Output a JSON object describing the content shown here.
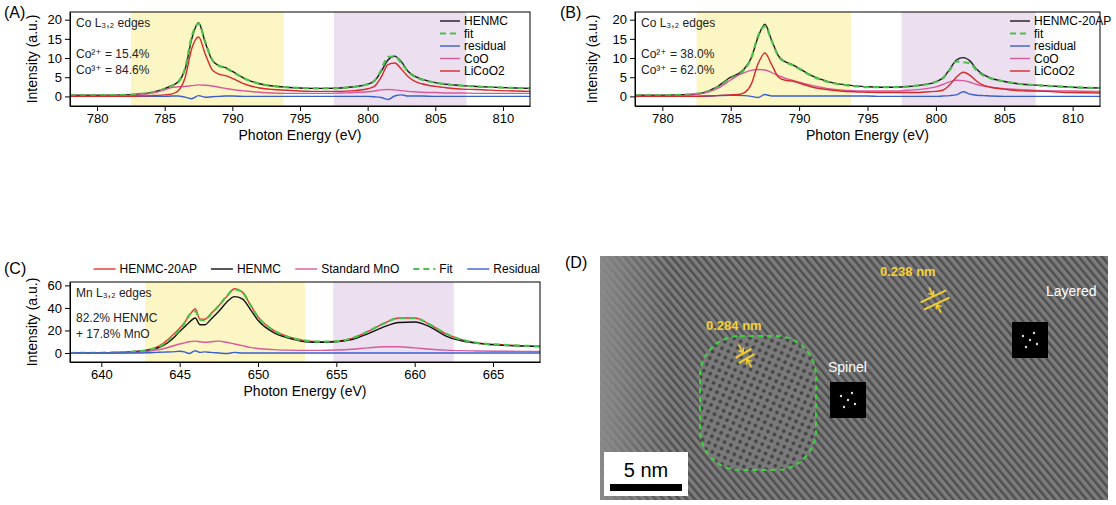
{
  "chart_data": [
    {
      "type": "line",
      "panel_label": "(A)",
      "x_label": "Photon Energy (eV)",
      "y_label": "Intensity (a.u.)",
      "annotations": [
        "Co L₃,₂ edges",
        "Co²⁺ = 15.4%",
        "Co³⁺ = 84.6%"
      ],
      "xlim": [
        778,
        812
      ],
      "xticks": [
        780,
        785,
        790,
        795,
        800,
        805,
        810
      ],
      "ylim": [
        -2.5,
        22
      ],
      "yticks": [
        0,
        5,
        10,
        15,
        20
      ],
      "bands": [
        {
          "x": [
            782.5,
            793.8
          ],
          "color": "#fcf6c4"
        },
        {
          "x": [
            797.5,
            807.3
          ],
          "color": "#ecdff0"
        }
      ],
      "legend": "upper right",
      "x": [
        778,
        780,
        782,
        783,
        784,
        785,
        785.5,
        786,
        786.5,
        787,
        787.5,
        788,
        788.5,
        789,
        789.5,
        790,
        791,
        792,
        793,
        794,
        795,
        796,
        797,
        798,
        799,
        800,
        800.5,
        801,
        801.5,
        802,
        802.5,
        803,
        803.5,
        804,
        805,
        806,
        807,
        808,
        810,
        812
      ],
      "series": [
        {
          "name": "HENMC",
          "color": "#1a1a1a",
          "values": [
            0.3,
            0.3,
            0.4,
            0.6,
            1.0,
            2.0,
            2.8,
            3.8,
            7.0,
            15.0,
            19.2,
            14.0,
            9.5,
            8.0,
            7.5,
            6.5,
            4.5,
            3.3,
            2.7,
            2.4,
            2.2,
            2.1,
            2.1,
            2.2,
            2.5,
            3.2,
            4.0,
            6.5,
            9.5,
            10.5,
            9.0,
            6.5,
            5.2,
            4.5,
            3.6,
            3.1,
            2.8,
            2.6,
            2.3,
            2.1
          ]
        },
        {
          "name": "fit",
          "color": "#4cc04c",
          "line_style": "dashed",
          "values": [
            0.3,
            0.3,
            0.4,
            0.6,
            1.0,
            2.0,
            2.7,
            3.7,
            7.2,
            15.6,
            19.0,
            14.2,
            9.6,
            8.0,
            7.4,
            6.4,
            4.5,
            3.3,
            2.7,
            2.4,
            2.2,
            2.1,
            2.1,
            2.2,
            2.5,
            3.2,
            4.1,
            6.8,
            10.3,
            10.4,
            8.6,
            6.4,
            5.1,
            4.4,
            3.6,
            3.1,
            2.8,
            2.6,
            2.3,
            2.1
          ]
        },
        {
          "name": "residual",
          "color": "#3a5fcd",
          "values": [
            0.0,
            0.0,
            0.0,
            0.0,
            0.0,
            0.0,
            0.1,
            0.1,
            -0.2,
            -0.6,
            0.2,
            -0.2,
            -0.1,
            0.0,
            0.1,
            0.1,
            0.0,
            0.0,
            0.0,
            0.0,
            0.0,
            0.0,
            0.0,
            0.0,
            0.0,
            0.0,
            -0.1,
            -0.3,
            -0.8,
            0.1,
            0.4,
            0.1,
            0.1,
            0.1,
            0.0,
            0.0,
            0.0,
            0.0,
            0.0,
            0.0
          ]
        },
        {
          "name": "CoO",
          "color": "#d65a9c",
          "values": [
            0.0,
            0.0,
            0.1,
            0.3,
            0.8,
            1.7,
            2.3,
            2.5,
            2.6,
            2.8,
            3.0,
            2.9,
            2.7,
            2.4,
            2.1,
            1.8,
            1.4,
            1.1,
            0.9,
            0.8,
            0.8,
            0.8,
            0.8,
            0.9,
            1.0,
            1.2,
            1.4,
            1.7,
            1.8,
            1.7,
            1.5,
            1.3,
            1.2,
            1.1,
            1.0,
            0.9,
            0.9,
            0.8,
            0.8,
            0.8
          ]
        },
        {
          "name": "LiCoO2",
          "color": "#d42a2a",
          "values": [
            0.0,
            0.0,
            0.0,
            0.1,
            0.2,
            0.4,
            0.6,
            1.5,
            4.8,
            12.5,
            15.5,
            11.0,
            7.0,
            5.8,
            5.4,
            4.7,
            3.1,
            2.2,
            1.8,
            1.6,
            1.4,
            1.3,
            1.3,
            1.3,
            1.5,
            2.0,
            2.6,
            5.0,
            8.3,
            8.7,
            7.1,
            5.1,
            3.9,
            3.3,
            2.6,
            2.2,
            1.9,
            1.8,
            1.5,
            1.3
          ]
        }
      ]
    },
    {
      "type": "line",
      "panel_label": "(B)",
      "x_label": "Photon Energy (eV)",
      "y_label": "Intensity (a.u.)",
      "annotations": [
        "Co L₃,₂ edges",
        "Co²⁺ = 38.0%",
        "Co³⁺ = 62.0%"
      ],
      "xlim": [
        778,
        812
      ],
      "xticks": [
        780,
        785,
        790,
        795,
        800,
        805,
        810
      ],
      "ylim": [
        -2.5,
        22
      ],
      "yticks": [
        0,
        5,
        10,
        15,
        20
      ],
      "bands": [
        {
          "x": [
            782.5,
            793.8
          ],
          "color": "#fcf6c4"
        },
        {
          "x": [
            797.5,
            807.3
          ],
          "color": "#ecdff0"
        }
      ],
      "legend": "upper right",
      "x": [
        778,
        780,
        782,
        783,
        784,
        785,
        785.5,
        786,
        786.5,
        787,
        787.5,
        788,
        788.5,
        789,
        789.5,
        790,
        791,
        792,
        793,
        794,
        795,
        796,
        797,
        798,
        799,
        800,
        800.5,
        801,
        801.5,
        802,
        802.5,
        803,
        803.5,
        804,
        805,
        806,
        807,
        808,
        810,
        812
      ],
      "series": [
        {
          "name": "HENMC-20AP",
          "color": "#1a1a1a",
          "values": [
            0.3,
            0.3,
            0.5,
            1.0,
            2.5,
            5.0,
            5.8,
            7.2,
            10.0,
            15.5,
            18.8,
            14.5,
            10.5,
            9.0,
            8.3,
            7.3,
            5.3,
            4.0,
            3.2,
            2.8,
            2.5,
            2.4,
            2.4,
            2.6,
            3.0,
            3.8,
            4.8,
            7.0,
            9.5,
            10.1,
            9.2,
            7.0,
            5.6,
            4.8,
            3.9,
            3.3,
            3.0,
            2.8,
            2.4,
            2.2
          ]
        },
        {
          "name": "fit",
          "color": "#4cc04c",
          "line_style": "dashed",
          "values": [
            0.3,
            0.3,
            0.5,
            1.0,
            2.3,
            4.7,
            5.5,
            7.0,
            10.0,
            15.8,
            18.3,
            14.4,
            10.4,
            8.9,
            8.2,
            7.2,
            5.2,
            3.9,
            3.1,
            2.7,
            2.4,
            2.4,
            2.4,
            2.6,
            3.0,
            3.8,
            4.7,
            6.8,
            9.1,
            8.9,
            8.6,
            6.7,
            5.4,
            4.7,
            3.9,
            3.3,
            3.0,
            2.8,
            2.4,
            2.2
          ]
        },
        {
          "name": "residual",
          "color": "#3a5fcd",
          "values": [
            0,
            0,
            0,
            0,
            0.2,
            0.3,
            0.3,
            0.2,
            0,
            -0.3,
            0.5,
            0.1,
            0.1,
            0.1,
            0.1,
            0.1,
            0.1,
            0.1,
            0.1,
            0.1,
            0.1,
            0,
            0,
            0,
            0,
            0,
            0.1,
            0.2,
            0.4,
            1.2,
            0.6,
            0.3,
            0.2,
            0.1,
            0,
            0,
            0,
            0,
            0,
            0
          ]
        },
        {
          "name": "CoO",
          "color": "#d65a9c",
          "values": [
            0.0,
            0.0,
            0.3,
            0.8,
            2.0,
            4.3,
            5.4,
            6.2,
            6.8,
            7.0,
            6.9,
            6.2,
            5.4,
            4.7,
            4.2,
            3.7,
            2.8,
            2.1,
            1.7,
            1.5,
            1.4,
            1.4,
            1.4,
            1.6,
            1.9,
            2.5,
            3.1,
            3.8,
            4.2,
            4.1,
            3.7,
            3.1,
            2.7,
            2.4,
            2.0,
            1.8,
            1.6,
            1.5,
            1.4,
            1.3
          ]
        },
        {
          "name": "LiCoO2",
          "color": "#d42a2a",
          "values": [
            0.0,
            0.0,
            0.0,
            0.1,
            0.2,
            0.4,
            0.5,
            1.0,
            3.2,
            8.5,
            11.3,
            8.2,
            5.0,
            4.2,
            4.0,
            3.5,
            2.4,
            1.8,
            1.4,
            1.2,
            1.1,
            1.0,
            1.0,
            1.0,
            1.1,
            1.3,
            1.6,
            3.0,
            5.0,
            6.3,
            5.5,
            3.9,
            2.9,
            2.4,
            1.9,
            1.5,
            1.4,
            1.3,
            1.0,
            0.9
          ]
        }
      ]
    },
    {
      "type": "line",
      "panel_label": "(C)",
      "x_label": "Photon Energy (eV)",
      "y_label": "Intensity (a.u.)",
      "annotations": [
        "Mn L₃,₂ edges",
        "82.2% HENMC",
        "+ 17.8% MnO"
      ],
      "xlim": [
        638,
        668
      ],
      "xticks": [
        640,
        645,
        650,
        655,
        660,
        665
      ],
      "ylim": [
        -8,
        63
      ],
      "yticks": [
        0,
        20,
        40,
        60
      ],
      "bands": [
        {
          "x": [
            642.8,
            653
          ],
          "color": "#fcf6c4"
        },
        {
          "x": [
            654.8,
            662.5
          ],
          "color": "#ecdff0"
        }
      ],
      "legend": "top",
      "x": [
        638,
        640,
        641,
        642,
        643,
        643.5,
        644,
        644.5,
        645,
        645.3,
        645.6,
        646,
        646.3,
        646.6,
        647,
        647.5,
        648,
        648.5,
        649,
        649.5,
        650,
        651,
        652,
        653,
        654,
        655,
        656,
        657,
        658,
        659,
        660,
        661,
        662,
        664,
        666,
        668
      ],
      "series": [
        {
          "name": "HENMC-20AP",
          "color": "#e8332a",
          "values": [
            0,
            0.2,
            0.5,
            1.2,
            3,
            5,
            9,
            15,
            22,
            27,
            33,
            39,
            30,
            30,
            35,
            42,
            50,
            57,
            54,
            43,
            32,
            20,
            14,
            11,
            10,
            10.5,
            13,
            19,
            26,
            31,
            31,
            25,
            17,
            9,
            7,
            6
          ]
        },
        {
          "name": "HENMC",
          "color": "#111111",
          "values": [
            0,
            0.2,
            0.4,
            1,
            2.5,
            4,
            7,
            12,
            19,
            23,
            27,
            31,
            25,
            25,
            30,
            37,
            45,
            50,
            48,
            39,
            29,
            18,
            13,
            10,
            9.5,
            10,
            12,
            17,
            23,
            27,
            27.5,
            23,
            15,
            8.5,
            6.5,
            5.8
          ]
        },
        {
          "name": "Standard MnO",
          "color": "#d65a9c",
          "values": [
            0,
            0,
            0.2,
            0.5,
            1.5,
            2.5,
            4,
            6,
            8,
            9,
            10,
            10.5,
            10,
            9.5,
            10,
            10.5,
            9.5,
            8,
            6.5,
            5,
            4,
            3,
            2.5,
            2.3,
            2.3,
            2.6,
            3.3,
            4.5,
            5.5,
            5.5,
            4.5,
            3.3,
            2.5,
            1.8,
            1.5,
            1.3
          ]
        },
        {
          "name": "Fit",
          "color": "#4cc04c",
          "line_style": "dashed",
          "values": [
            0,
            0.2,
            0.5,
            1.2,
            2.8,
            4.5,
            8.2,
            14,
            20.5,
            26,
            33.5,
            37,
            29.5,
            29,
            34.5,
            42,
            50.5,
            56.5,
            54,
            43,
            32,
            20,
            14,
            11,
            10,
            10.5,
            13,
            19,
            26,
            31,
            31,
            25,
            17,
            9,
            7,
            6
          ]
        },
        {
          "name": "Residual",
          "color": "#3a5fcd",
          "values": [
            0,
            0,
            0,
            0,
            0.2,
            0.5,
            0.8,
            1,
            1.5,
            1,
            -0.5,
            2,
            0.5,
            1,
            0.5,
            0,
            -0.5,
            0.5,
            0,
            0,
            0,
            0,
            0,
            0,
            0,
            0,
            0,
            0,
            0,
            0,
            0,
            0,
            0,
            0,
            0,
            0
          ]
        }
      ]
    }
  ],
  "image_panel": {
    "panel_label": "(D)",
    "spacing_labels": [
      "0.284 nm",
      "0.238 nm"
    ],
    "phase_labels": [
      "Spinel",
      "Layered"
    ],
    "scale_bar": "5 nm"
  }
}
